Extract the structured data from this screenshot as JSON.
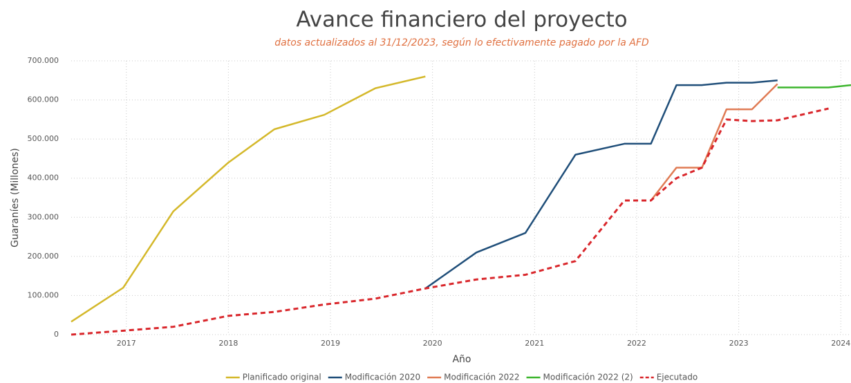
{
  "chart_data": {
    "type": "line",
    "title": "Avance financiero del proyecto",
    "subtitle": "datos actualizados al 31/12/2023, según lo efectivamente pagado por la AFD",
    "x_label": "Año",
    "y_label": "Guaraníes (Millones)",
    "xlim": [
      2016.46,
      2024.1
    ],
    "xticks": [
      2017,
      2018,
      2019,
      2020,
      2021,
      2022,
      2023,
      2024
    ],
    "ylim": [
      0,
      700000
    ],
    "yticks": [
      0,
      {
        "value": 100000,
        "label": "100.000"
      },
      {
        "value": 200000,
        "label": "200.000"
      },
      {
        "value": 300000,
        "label": "300.000"
      },
      {
        "value": 400000,
        "label": "400.000"
      },
      {
        "value": 500000,
        "label": "500.000"
      },
      {
        "value": 600000,
        "label": "600.000"
      },
      {
        "value": 700000,
        "label": "700.000"
      }
    ],
    "grid": true,
    "legend": "bottom",
    "series": [
      {
        "name": "Planificado original",
        "color": "#d4b82a",
        "dashed": false,
        "x": [
          2016.46,
          2016.97,
          2017.46,
          2018.0,
          2018.45,
          2018.94,
          2019.44,
          2019.93
        ],
        "values": [
          33000,
          120000,
          315000,
          440000,
          525000,
          562000,
          630000,
          660000
        ]
      },
      {
        "name": "Modificación 2020",
        "color": "#1f4e79",
        "dashed": false,
        "x": [
          2019.93,
          2020.43,
          2020.91,
          2021.4,
          2021.88,
          2022.14,
          2022.39,
          2022.64,
          2022.88,
          2023.13,
          2023.38
        ],
        "values": [
          118000,
          210000,
          260000,
          460000,
          488000,
          488000,
          638000,
          638000,
          644000,
          644000,
          650000
        ]
      },
      {
        "name": "Modificación 2022",
        "color": "#e07b54",
        "dashed": false,
        "x": [
          2022.14,
          2022.39,
          2022.64,
          2022.88,
          2023.13,
          2023.38
        ],
        "values": [
          343000,
          427000,
          427000,
          576000,
          576000,
          641000
        ]
      },
      {
        "name": "Modificación 2022 (2)",
        "color": "#3cb52d",
        "dashed": false,
        "x": [
          2023.38,
          2023.88,
          2024.1
        ],
        "values": [
          632000,
          632000,
          638000
        ]
      },
      {
        "name": "Ejecutado",
        "color": "#d9262b",
        "dashed": true,
        "x": [
          2016.46,
          2016.97,
          2017.46,
          2018.0,
          2018.45,
          2018.94,
          2019.44,
          2019.93,
          2020.43,
          2020.91,
          2021.4,
          2021.88,
          2022.14,
          2022.39,
          2022.64,
          2022.88,
          2023.13,
          2023.38,
          2023.88
        ],
        "values": [
          0,
          10000,
          20000,
          48000,
          58000,
          77000,
          92000,
          118000,
          141000,
          153000,
          188000,
          343000,
          343000,
          400000,
          427000,
          550000,
          546000,
          548000,
          578000
        ]
      }
    ]
  }
}
